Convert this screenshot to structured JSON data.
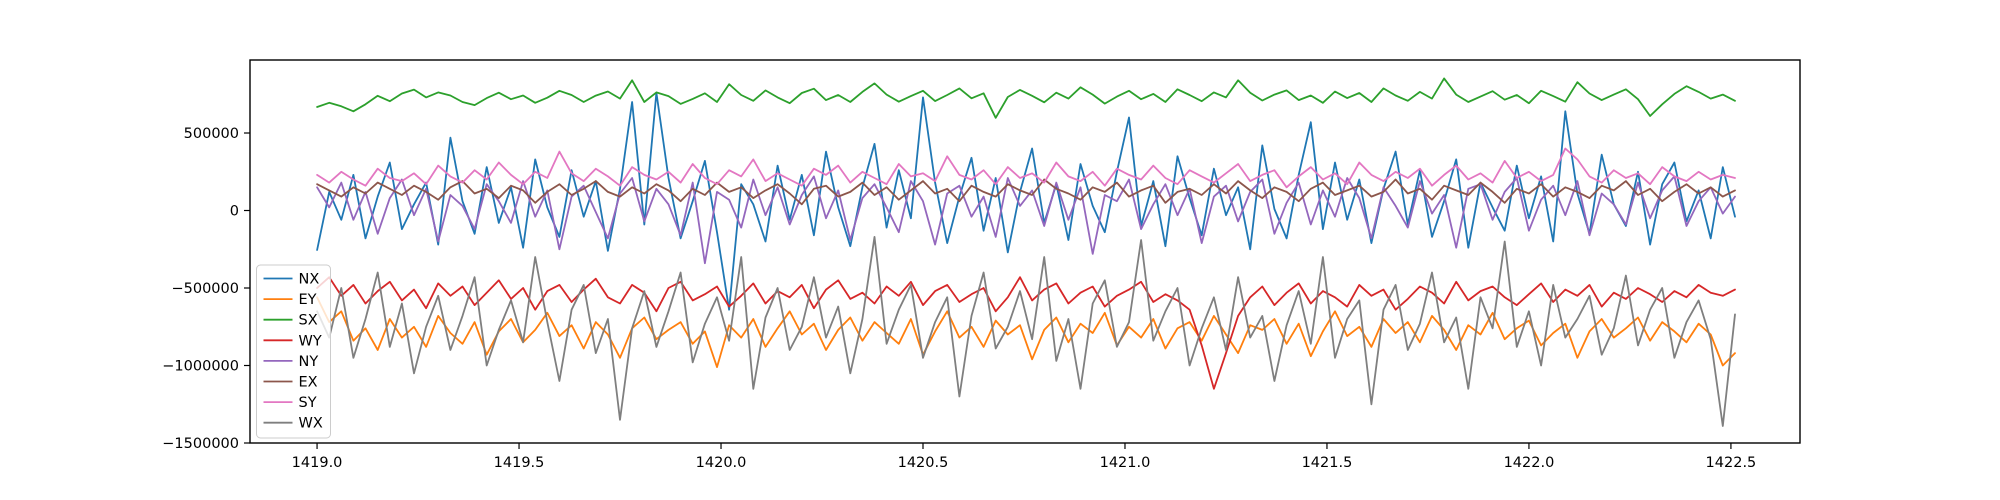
{
  "figure": {
    "background_color": "#ffffff",
    "plot_background_color": "#ffffff",
    "frame_color": "#000000"
  },
  "chart_data": {
    "type": "line",
    "grid": false,
    "xlim": [
      1418.834,
      1422.671
    ],
    "ylim": [
      -1500000,
      971000
    ],
    "x_ticks": [
      1419.0,
      1419.5,
      1420.0,
      1420.5,
      1421.0,
      1421.5,
      1422.0,
      1422.5
    ],
    "x_tick_labels": [
      "1419.0",
      "1419.5",
      "1420.0",
      "1420.5",
      "1421.0",
      "1421.5",
      "1422.0",
      "1422.5"
    ],
    "y_ticks": [
      500000,
      0,
      -500000,
      -1000000,
      -1500000
    ],
    "y_tick_labels": [
      "500000",
      "0",
      "−500000",
      "−1000000",
      "−1500000"
    ],
    "legend": {
      "location": "lower left",
      "border_color": "#cccccc",
      "background": "rgba(255,255,255,0.8)"
    },
    "x_start": 1419.0,
    "x_step": 0.03,
    "unit_multiplier": 1000,
    "series": [
      {
        "name": "NX",
        "color": "#1f77b4",
        "values": [
          -255,
          120,
          -60,
          230,
          -180,
          90,
          310,
          -120,
          40,
          180,
          -220,
          470,
          60,
          -150,
          280,
          -80,
          150,
          -240,
          330,
          20,
          -170,
          260,
          -40,
          190,
          -260,
          140,
          700,
          -90,
          760,
          210,
          -180,
          60,
          320,
          -140,
          -640,
          170,
          40,
          -200,
          290,
          -60,
          230,
          -160,
          380,
          20,
          -230,
          150,
          430,
          -110,
          260,
          -50,
          730,
          180,
          -210,
          90,
          340,
          -130,
          210,
          -270,
          120,
          400,
          -80,
          170,
          -190,
          300,
          30,
          -140,
          250,
          600,
          -100,
          190,
          -230,
          350,
          80,
          -160,
          270,
          -30,
          150,
          -250,
          420,
          10,
          -180,
          230,
          570,
          -120,
          310,
          -60,
          200,
          -210,
          140,
          380,
          -90,
          260,
          -170,
          60,
          330,
          -240,
          180,
          20,
          -130,
          290,
          -50,
          220,
          -200,
          640,
          110,
          -150,
          360,
          40,
          -100,
          250,
          -220,
          170,
          310,
          -70,
          130,
          -180,
          280,
          -40
        ]
      },
      {
        "name": "EY",
        "color": "#ff7f0e",
        "values": [
          -560,
          -720,
          -650,
          -840,
          -760,
          -900,
          -700,
          -820,
          -750,
          -880,
          -680,
          -790,
          -860,
          -720,
          -930,
          -780,
          -700,
          -850,
          -770,
          -660,
          -810,
          -740,
          -890,
          -720,
          -800,
          -950,
          -760,
          -690,
          -830,
          -770,
          -720,
          -860,
          -780,
          -1010,
          -740,
          -820,
          -700,
          -880,
          -760,
          -650,
          -800,
          -730,
          -900,
          -770,
          -690,
          -840,
          -720,
          -790,
          -860,
          -700,
          -930,
          -780,
          -650,
          -820,
          -750,
          -880,
          -710,
          -800,
          -740,
          -960,
          -770,
          -690,
          -850,
          -730,
          -790,
          -660,
          -870,
          -750,
          -820,
          -700,
          -890,
          -760,
          -720,
          -840,
          -680,
          -800,
          -920,
          -740,
          -770,
          -700,
          -860,
          -730,
          -940,
          -780,
          -650,
          -810,
          -750,
          -880,
          -700,
          -790,
          -720,
          -850,
          -680,
          -770,
          -900,
          -740,
          -800,
          -660,
          -830,
          -760,
          -710,
          -870,
          -790,
          -730,
          -950,
          -780,
          -700,
          -820,
          -760,
          -690,
          -840,
          -720,
          -780,
          -850,
          -730,
          -800,
          -1000,
          -920
        ]
      },
      {
        "name": "SX",
        "color": "#2ca02c",
        "values": [
          668,
          695,
          672,
          640,
          685,
          740,
          705,
          755,
          780,
          730,
          762,
          742,
          700,
          680,
          725,
          760,
          718,
          742,
          695,
          728,
          772,
          745,
          700,
          741,
          768,
          722,
          840,
          700,
          762,
          738,
          688,
          720,
          756,
          700,
          815,
          745,
          708,
          775,
          730,
          692,
          758,
          786,
          712,
          745,
          700,
          765,
          820,
          748,
          702,
          738,
          772,
          706,
          745,
          788,
          724,
          756,
          598,
          732,
          778,
          740,
          698,
          760,
          722,
          795,
          748,
          690,
          735,
          772,
          718,
          752,
          700,
          782,
          745,
          705,
          762,
          730,
          840,
          760,
          710,
          748,
          775,
          712,
          742,
          695,
          768,
          725,
          758,
          700,
          788,
          742,
          708,
          765,
          722,
          852,
          748,
          700,
          735,
          770,
          715,
          745,
          692,
          772,
          738,
          702,
          828,
          755,
          712,
          748,
          782,
          718,
          610,
          685,
          752,
          802,
          765,
          722,
          748,
          708
        ]
      },
      {
        "name": "WY",
        "color": "#d62728",
        "values": [
          -500,
          -430,
          -550,
          -480,
          -600,
          -520,
          -460,
          -580,
          -510,
          -630,
          -470,
          -550,
          -490,
          -610,
          -530,
          -450,
          -570,
          -500,
          -640,
          -520,
          -480,
          -590,
          -510,
          -440,
          -560,
          -600,
          -480,
          -530,
          -650,
          -500,
          -460,
          -580,
          -540,
          -490,
          -620,
          -550,
          -470,
          -600,
          -520,
          -560,
          -480,
          -630,
          -510,
          -450,
          -570,
          -530,
          -600,
          -490,
          -550,
          -460,
          -610,
          -520,
          -480,
          -590,
          -540,
          -500,
          -650,
          -560,
          -430,
          -580,
          -510,
          -470,
          -600,
          -530,
          -490,
          -620,
          -550,
          -510,
          -460,
          -590,
          -540,
          -580,
          -640,
          -870,
          -1150,
          -920,
          -680,
          -560,
          -490,
          -610,
          -530,
          -470,
          -600,
          -520,
          -560,
          -620,
          -480,
          -550,
          -510,
          -640,
          -570,
          -490,
          -530,
          -600,
          -460,
          -580,
          -520,
          -490,
          -560,
          -610,
          -540,
          -470,
          -590,
          -510,
          -550,
          -480,
          -620,
          -530,
          -570,
          -500,
          -540,
          -590,
          -520,
          -560,
          -480,
          -530,
          -550,
          -510
        ]
      },
      {
        "name": "NY",
        "color": "#9467bd",
        "values": [
          150,
          20,
          180,
          -60,
          120,
          -150,
          80,
          200,
          -30,
          140,
          -200,
          100,
          30,
          -120,
          170,
          60,
          -80,
          190,
          -40,
          130,
          -250,
          90,
          160,
          -10,
          -180,
          110,
          210,
          -70,
          140,
          40,
          -160,
          180,
          -340,
          120,
          70,
          -110,
          200,
          -30,
          150,
          -90,
          100,
          220,
          -50,
          130,
          -190,
          80,
          170,
          20,
          -140,
          190,
          60,
          -220,
          110,
          160,
          -40,
          90,
          -170,
          210,
          30,
          130,
          -100,
          180,
          -60,
          150,
          -280,
          100,
          60,
          200,
          -120,
          40,
          170,
          -30,
          140,
          -210,
          90,
          160,
          -70,
          120,
          200,
          -150,
          50,
          180,
          -90,
          130,
          -40,
          210,
          80,
          -180,
          150,
          30,
          -110,
          190,
          -20,
          100,
          -240,
          140,
          170,
          -60,
          120,
          210,
          -130,
          70,
          160,
          -30,
          190,
          -160,
          110,
          40,
          -90,
          180,
          -50,
          130,
          220,
          -100,
          60,
          150,
          -20,
          90
        ]
      },
      {
        "name": "EX",
        "color": "#8c564b",
        "values": [
          170,
          130,
          90,
          150,
          110,
          180,
          140,
          100,
          160,
          120,
          70,
          150,
          190,
          110,
          140,
          80,
          160,
          130,
          50,
          120,
          170,
          100,
          140,
          190,
          120,
          90,
          150,
          110,
          170,
          130,
          60,
          140,
          100,
          180,
          120,
          150,
          80,
          130,
          170,
          110,
          40,
          140,
          160,
          90,
          120,
          180,
          100,
          150,
          70,
          130,
          190,
          110,
          140,
          60,
          160,
          120,
          90,
          170,
          130,
          100,
          200,
          140,
          110,
          70,
          150,
          120,
          180,
          90,
          130,
          160,
          50,
          120,
          140,
          100,
          170,
          110,
          190,
          130,
          80,
          150,
          120,
          60,
          140,
          180,
          100,
          130,
          160,
          90,
          120,
          200,
          110,
          140,
          70,
          160,
          130,
          100,
          180,
          120,
          50,
          140,
          110,
          170,
          90,
          150,
          120,
          80,
          160,
          130,
          190,
          100,
          140,
          60,
          120,
          170,
          110,
          150,
          90,
          130
        ]
      },
      {
        "name": "SY",
        "color": "#e377c2",
        "values": [
          230,
          180,
          250,
          200,
          160,
          270,
          210,
          190,
          240,
          170,
          290,
          220,
          180,
          260,
          200,
          310,
          230,
          170,
          250,
          210,
          380,
          240,
          190,
          270,
          220,
          160,
          280,
          230,
          200,
          250,
          180,
          300,
          210,
          170,
          260,
          220,
          330,
          190,
          240,
          200,
          160,
          270,
          230,
          290,
          180,
          250,
          210,
          170,
          300,
          220,
          240,
          190,
          350,
          230,
          200,
          260,
          170,
          280,
          210,
          240,
          180,
          310,
          220,
          190,
          250,
          160,
          270,
          230,
          200,
          290,
          210,
          170,
          260,
          220,
          180,
          240,
          300,
          190,
          230,
          260,
          150,
          220,
          280,
          200,
          240,
          170,
          310,
          230,
          190,
          250,
          210,
          270,
          160,
          230,
          290,
          200,
          240,
          180,
          320,
          210,
          250,
          190,
          230,
          400,
          330,
          220,
          180,
          260,
          210,
          240,
          170,
          280,
          220,
          190,
          250,
          200,
          230,
          210
        ]
      },
      {
        "name": "WX",
        "color": "#7f7f7f",
        "values": [
          -650,
          -820,
          -500,
          -950,
          -700,
          -400,
          -880,
          -600,
          -1050,
          -750,
          -550,
          -900,
          -680,
          -430,
          -1000,
          -770,
          -580,
          -850,
          -300,
          -720,
          -1100,
          -640,
          -480,
          -920,
          -700,
          -1350,
          -760,
          -520,
          -880,
          -650,
          -400,
          -980,
          -730,
          -560,
          -840,
          -300,
          -1150,
          -690,
          -500,
          -900,
          -750,
          -430,
          -820,
          -620,
          -1050,
          -700,
          -170,
          -860,
          -640,
          -480,
          -950,
          -720,
          -560,
          -1200,
          -680,
          -400,
          -890,
          -750,
          -520,
          -830,
          -300,
          -970,
          -700,
          -1150,
          -600,
          -450,
          -880,
          -720,
          -190,
          -840,
          -650,
          -500,
          -1000,
          -760,
          -560,
          -900,
          -430,
          -820,
          -680,
          -1100,
          -740,
          -520,
          -860,
          -300,
          -950,
          -700,
          -580,
          -1250,
          -640,
          -480,
          -900,
          -730,
          -400,
          -850,
          -690,
          -1150,
          -560,
          -760,
          -200,
          -880,
          -650,
          -1000,
          -480,
          -820,
          -700,
          -550,
          -930,
          -760,
          -420,
          -870,
          -640,
          -500,
          -950,
          -720,
          -580,
          -830,
          -1390,
          -670
        ]
      }
    ]
  }
}
